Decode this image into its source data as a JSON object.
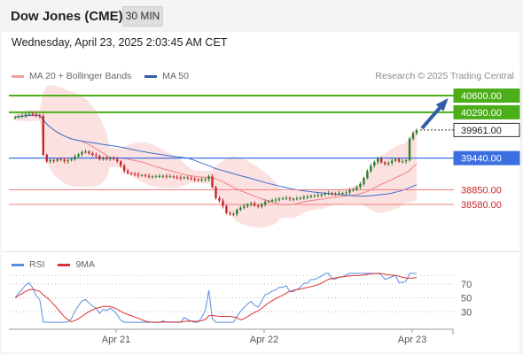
{
  "header": {
    "title": "Dow Jones (CME)",
    "timeframe": "30 MIN"
  },
  "datetime": "Wednesday, April 23, 2025 2:03:45 AM CET",
  "legend": {
    "bollinger_label": "MA 20 + Bollinger Bands",
    "ma50_label": "MA 50",
    "copyright": "Research © 2025 Trading Central"
  },
  "rsi_legend": {
    "rsi_label": "RSI",
    "ma_label": "9MA"
  },
  "colors": {
    "up": "#2e7d32",
    "down": "#c62828",
    "resistance": "#4caf1a",
    "support_blue": "#3b6fe0",
    "support_red": "#f28080",
    "current": "#2b2b2b",
    "arrow": "#2f5fa8",
    "band": "#fcdcdc",
    "ma20": "#f08080",
    "ma50": "#3b6fd0",
    "rsi": "#5b8de0",
    "rsi_ma": "#d33"
  },
  "chart_data": [
    {
      "type": "candlestick",
      "x_ticks": [
        "Apr 21",
        "Apr 22",
        "Apr 23"
      ],
      "ylim": [
        38400,
        40700
      ],
      "levels": [
        {
          "label": "40600.00",
          "value": 40600,
          "style": "resistance"
        },
        {
          "label": "40290.00",
          "value": 40290,
          "style": "resistance"
        },
        {
          "label": "39961.00",
          "value": 39961,
          "style": "current"
        },
        {
          "label": "39440.00",
          "value": 39440,
          "style": "support_blue"
        },
        {
          "label": "38850.00",
          "value": 38850,
          "style": "support_red"
        },
        {
          "label": "38580.00",
          "value": 38580,
          "style": "support_red"
        }
      ],
      "close": [
        40200,
        40215,
        40230,
        40250,
        40260,
        40250,
        40230,
        40220,
        39500,
        39380,
        39400,
        39390,
        39420,
        39410,
        39380,
        39400,
        39420,
        39470,
        39510,
        39550,
        39560,
        39530,
        39500,
        39480,
        39420,
        39440,
        39430,
        39440,
        39420,
        39380,
        39300,
        39200,
        39160,
        39150,
        39140,
        39120,
        39120,
        39110,
        39100,
        39100,
        39100,
        39105,
        39110,
        39100,
        39100,
        39090,
        39080,
        39070,
        39080,
        39070,
        39060,
        39040,
        39030,
        39040,
        39050,
        39100,
        38900,
        38700,
        38650,
        38550,
        38420,
        38400,
        38400,
        38480,
        38520,
        38550,
        38580,
        38600,
        38560,
        38540,
        38580,
        38630,
        38640,
        38660,
        38670,
        38690,
        38690,
        38700,
        38680,
        38680,
        38690,
        38700,
        38720,
        38720,
        38740,
        38740,
        38750,
        38760,
        38780,
        38790,
        38780,
        38780,
        38790,
        38790,
        38800,
        38840,
        38860,
        38900,
        38960,
        39070,
        39200,
        39300,
        39370,
        39430,
        39360,
        39330,
        39350,
        39390,
        39420,
        39380,
        39380,
        39400,
        39800,
        39900,
        39960
      ]
    },
    {
      "type": "line",
      "name": "RSI",
      "y_ticks": [
        70,
        50,
        30
      ],
      "ylim": [
        10,
        90
      ]
    }
  ]
}
